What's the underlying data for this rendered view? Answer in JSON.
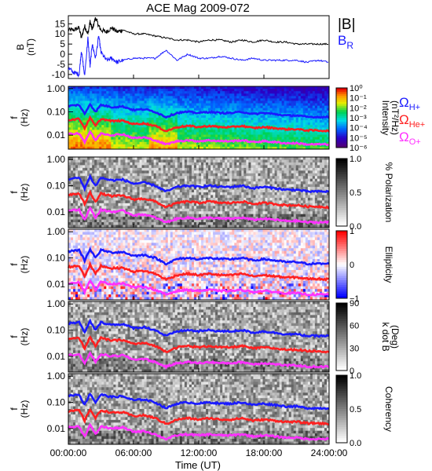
{
  "chart_data": {
    "type": "line",
    "title": "ACE Mag 2009-072",
    "xlabel": "Time (UT)",
    "x_ticks": [
      "00:00:00",
      "06:00:00",
      "12:00:00",
      "18:00:00",
      "24:00:00"
    ],
    "x_range_hours": [
      0,
      24
    ],
    "colors": {
      "black": "#000000",
      "blue": "#1a1aff",
      "red": "#ff2020",
      "magenta": "#ff30ff"
    },
    "panels": [
      {
        "kind": "timeseries",
        "ylabel": "B\n(nT)",
        "ylim": [
          -12,
          19
        ],
        "yticks": [
          "15",
          "10",
          "5",
          "0",
          "-5",
          "-10"
        ],
        "ytick_values": [
          15,
          10,
          5,
          0,
          -5,
          -10
        ],
        "legend": [
          "|B|",
          "B_R"
        ],
        "series": [
          {
            "name": "|B|",
            "color": "#000000",
            "x": [
              0,
              0.5,
              1,
              1.2,
              1.5,
              1.8,
              2,
              2.2,
              2.5,
              2.8,
              3,
              3.5,
              4,
              4.5,
              5,
              6,
              7,
              8,
              9,
              10,
              11,
              12,
              13,
              14,
              15,
              16,
              17,
              18,
              19,
              20,
              21,
              22,
              23,
              24
            ],
            "y": [
              12,
              12,
              13,
              8,
              14,
              10,
              16,
              12,
              18,
              14,
              12,
              11,
              13,
              11,
              12,
              10,
              10,
              9,
              8,
              7,
              7,
              6,
              7,
              7,
              6,
              7,
              6,
              7,
              6,
              6,
              5,
              5,
              5,
              5
            ]
          },
          {
            "name": "B_R",
            "color": "#1a1aff",
            "x": [
              0,
              0.5,
              1,
              1.2,
              1.5,
              1.8,
              2,
              2.2,
              2.5,
              2.8,
              3,
              3.5,
              4,
              4.5,
              5,
              6,
              7,
              8,
              9,
              10,
              11,
              12,
              13,
              14,
              15,
              16,
              17,
              18,
              19,
              20,
              21,
              22,
              23,
              24
            ],
            "y": [
              -7,
              -9,
              -10,
              2,
              -11,
              8,
              -6,
              5,
              -2,
              9,
              1,
              -3,
              -2,
              -4,
              -3,
              -2,
              -2,
              -2,
              2,
              -3,
              0,
              -2,
              -2,
              -1,
              -2,
              -3,
              -2,
              -3,
              -3,
              -3,
              -3,
              -4,
              -3,
              -4
            ]
          }
        ]
      },
      {
        "kind": "spectrogram",
        "colormap": "rainbow",
        "ylabel": "f\n(Hz)",
        "yticks": [
          "1.00",
          "0.10",
          "0.01"
        ],
        "colorbar_label": "Intensity\n(nT²/Hz)",
        "colorbar_ticks": [
          "10⁰",
          "10⁻¹",
          "10⁻²",
          "10⁻³",
          "10⁻⁴",
          "10⁻⁵",
          "10⁻⁶"
        ],
        "side_legend": [
          "ΩH+",
          "ΩHe+",
          "ΩO+"
        ]
      },
      {
        "kind": "spectrogram",
        "colormap": "gray",
        "ylabel": "f\n(Hz)",
        "yticks": [
          "1.00",
          "0.10",
          "0.01"
        ],
        "colorbar_label": "% Polarization",
        "colorbar_ticks": [
          "1.0",
          "0.5",
          "0.0"
        ]
      },
      {
        "kind": "spectrogram",
        "colormap": "bwr",
        "ylabel": "f\n(Hz)",
        "yticks": [
          "1.00",
          "0.10",
          "0.01"
        ],
        "colorbar_label": "Ellipticity",
        "colorbar_ticks": [
          "1",
          "0",
          "−1"
        ]
      },
      {
        "kind": "spectrogram",
        "colormap": "gray",
        "ylabel": "f\n(Hz)",
        "yticks": [
          "1.00",
          "0.10",
          "0.01"
        ],
        "colorbar_label": "k dot B\n(Deg)",
        "colorbar_ticks": [
          "90",
          "60",
          "30",
          "0"
        ]
      },
      {
        "kind": "spectrogram",
        "colormap": "gray",
        "ylabel": "f\n(Hz)",
        "yticks": [
          "1.00",
          "0.10",
          "0.01"
        ],
        "colorbar_label": "Coherency",
        "colorbar_ticks": [
          "1.0",
          "0.5",
          "0.0"
        ]
      }
    ],
    "gyrofrequency_lines": [
      {
        "name": "ΩH+",
        "color": "#1a1aff",
        "x": [
          0,
          1,
          1.5,
          2,
          2.5,
          3,
          4,
          5,
          6,
          7,
          8,
          9,
          10,
          11,
          12,
          13,
          14,
          15,
          16,
          17,
          18,
          19,
          20,
          21,
          22,
          23,
          24
        ],
        "y": [
          0.18,
          0.2,
          0.08,
          0.22,
          0.1,
          0.2,
          0.16,
          0.17,
          0.12,
          0.13,
          0.1,
          0.06,
          0.09,
          0.1,
          0.09,
          0.1,
          0.09,
          0.09,
          0.1,
          0.08,
          0.09,
          0.08,
          0.07,
          0.07,
          0.06,
          0.06,
          0.06
        ]
      },
      {
        "name": "ΩHe+",
        "color": "#ff2020",
        "x": [
          0,
          1,
          1.5,
          2,
          2.5,
          3,
          4,
          5,
          6,
          7,
          8,
          9,
          10,
          11,
          12,
          13,
          14,
          15,
          16,
          17,
          18,
          19,
          20,
          21,
          22,
          23,
          24
        ],
        "y": [
          0.045,
          0.05,
          0.02,
          0.055,
          0.025,
          0.05,
          0.04,
          0.042,
          0.03,
          0.032,
          0.025,
          0.015,
          0.022,
          0.025,
          0.022,
          0.025,
          0.022,
          0.022,
          0.025,
          0.02,
          0.022,
          0.02,
          0.018,
          0.018,
          0.016,
          0.016,
          0.015
        ]
      },
      {
        "name": "ΩO+",
        "color": "#ff30ff",
        "x": [
          0,
          1,
          1.5,
          2,
          2.5,
          3,
          4,
          5,
          6,
          7,
          8,
          9,
          10,
          11,
          12,
          13,
          14,
          15,
          16,
          17,
          18,
          19,
          20,
          21,
          22,
          23,
          24
        ],
        "y": [
          0.011,
          0.012,
          0.005,
          0.014,
          0.006,
          0.012,
          0.01,
          0.011,
          0.0075,
          0.008,
          0.006,
          0.004,
          0.0055,
          0.006,
          0.0055,
          0.006,
          0.0055,
          0.0055,
          0.006,
          0.005,
          0.0055,
          0.005,
          0.0045,
          0.0045,
          0.004,
          0.004,
          0.004
        ]
      }
    ]
  }
}
